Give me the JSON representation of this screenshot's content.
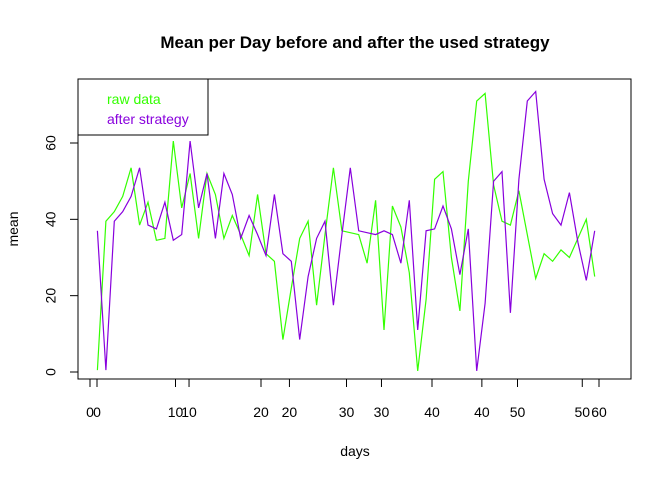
{
  "chart_data": {
    "type": "line",
    "title": "Mean per Day before and after the used strategy",
    "xlabel": "days",
    "ylabel": "mean",
    "xlim": [
      0,
      63
    ],
    "ylim": [
      -2,
      78
    ],
    "y_ticks": [
      0,
      20,
      40,
      60
    ],
    "x_tick_rows": [
      {
        "ticks": [
          0,
          10,
          20,
          30,
          40,
          50
        ],
        "labels": [
          "0",
          "10",
          "20",
          "30",
          "40",
          "50"
        ]
      },
      {
        "ticks": [
          0,
          11,
          23,
          34,
          46,
          58
        ],
        "labels": [
          "0",
          "10",
          "20",
          "30",
          "40",
          "50"
        ]
      },
      {
        "ticks": [
          60
        ],
        "labels": [
          "60"
        ]
      }
    ],
    "grid": false,
    "legend_position": "top-left",
    "series": [
      {
        "name": "raw data",
        "color": "#33ff00",
        "x": [
          1,
          2,
          3,
          4,
          5,
          6,
          7,
          8,
          9,
          10,
          11,
          12,
          13,
          14,
          15,
          16,
          17,
          18,
          19,
          20,
          21,
          22,
          23,
          24,
          25,
          26,
          27,
          28,
          29,
          30,
          31,
          32,
          33,
          34,
          35,
          36,
          37,
          38,
          39,
          40,
          41,
          42,
          43,
          44,
          45,
          46,
          47,
          48,
          49,
          50,
          51,
          52,
          53,
          54,
          55,
          56,
          57,
          58,
          59,
          60
        ],
        "values": [
          0.5,
          39.5,
          42,
          46,
          53.5,
          38.5,
          44.5,
          34.5,
          35,
          60.5,
          43,
          52,
          35,
          52,
          46.5,
          35,
          41,
          36,
          30.5,
          46.5,
          31,
          29,
          8.5,
          22,
          35,
          39.5,
          17.5,
          36,
          53.5,
          37,
          36.5,
          36,
          28.5,
          45,
          11,
          43.5,
          38,
          26,
          0.3,
          19,
          50.5,
          52.5,
          30,
          16,
          50,
          71,
          73,
          49,
          39.5,
          38.5,
          47.5,
          36,
          24.5,
          31,
          29,
          32,
          30,
          35,
          40,
          25
        ]
      },
      {
        "name": "after strategy",
        "color": "#8800dd",
        "x": [
          1,
          2,
          3,
          4,
          5,
          6,
          7,
          8,
          9,
          10,
          11,
          12,
          13,
          14,
          15,
          16,
          17,
          18,
          19,
          20,
          21,
          22,
          23,
          24,
          25,
          26,
          27,
          28,
          29,
          30,
          31,
          32,
          33,
          34,
          35,
          36,
          37,
          38,
          39,
          40,
          41,
          42,
          43,
          44,
          45,
          46,
          47,
          48,
          49,
          50,
          51,
          52,
          53,
          54,
          55,
          56,
          57,
          58,
          59,
          60
        ],
        "values": [
          37,
          0.5,
          39.5,
          42,
          46,
          53.5,
          38.5,
          37.5,
          44.5,
          34.5,
          36,
          60.5,
          43,
          52,
          35,
          52,
          46.5,
          35,
          41,
          36,
          30.5,
          46.5,
          31,
          29,
          8.5,
          25,
          35,
          39.5,
          17.5,
          36,
          53.5,
          37,
          36.5,
          36,
          37,
          36,
          28.5,
          45,
          11,
          37,
          37.5,
          43.5,
          37.5,
          25.5,
          37.5,
          0.3,
          18,
          50,
          52.5,
          15.5,
          50.5,
          71,
          73.5,
          50.5,
          41.5,
          38.5,
          47,
          34,
          24,
          37
        ]
      }
    ]
  }
}
